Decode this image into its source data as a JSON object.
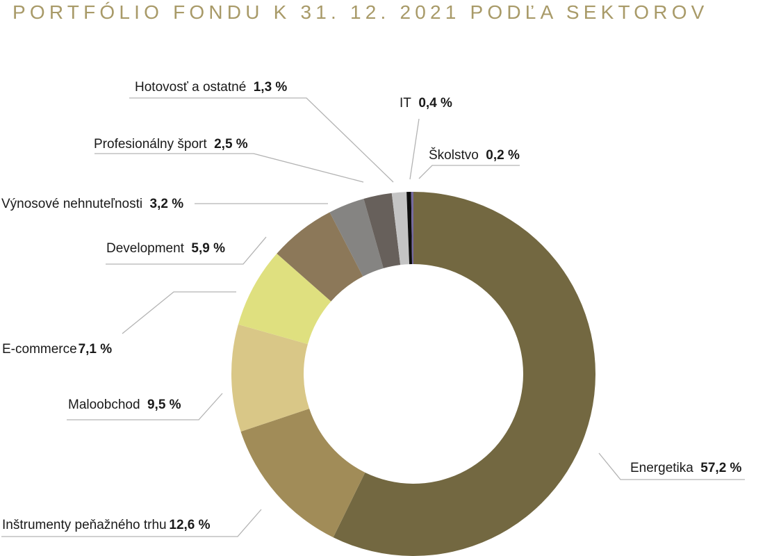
{
  "chart_data": {
    "type": "pie",
    "title": "PORTFÓLIO FONDU K 31. 12. 2021 PODĽA SEKTOROV",
    "slices": [
      {
        "name": "Energetika",
        "value": 57.2,
        "value_label": "57,2 %",
        "color": "#736841"
      },
      {
        "name": "Inštrumenty peňažného trhu",
        "value": 12.6,
        "value_label": "12,6 %",
        "color": "#a18c58"
      },
      {
        "name": "Maloobchod",
        "value": 9.5,
        "value_label": "9,5 %",
        "color": "#d9c787"
      },
      {
        "name": "E-commerce",
        "value": 7.1,
        "value_label": "7,1 %",
        "color": "#dfe07f"
      },
      {
        "name": "Development",
        "value": 5.9,
        "value_label": "5,9 %",
        "color": "#8c7859"
      },
      {
        "name": "Výnosové nehnuteľnosti",
        "value": 3.2,
        "value_label": "3,2 %",
        "color": "#858482"
      },
      {
        "name": "Profesionálny šport",
        "value": 2.5,
        "value_label": "2,5 %",
        "color": "#67605b"
      },
      {
        "name": "Hotovosť a ostatné",
        "value": 1.3,
        "value_label": "1,3 %",
        "color": "#c4c4c4"
      },
      {
        "name": "IT",
        "value": 0.4,
        "value_label": "0,4 %",
        "color": "#0d0d0d"
      },
      {
        "name": "Školstvo",
        "value": 0.2,
        "value_label": "0,2 %",
        "color": "#766aa0"
      }
    ]
  }
}
